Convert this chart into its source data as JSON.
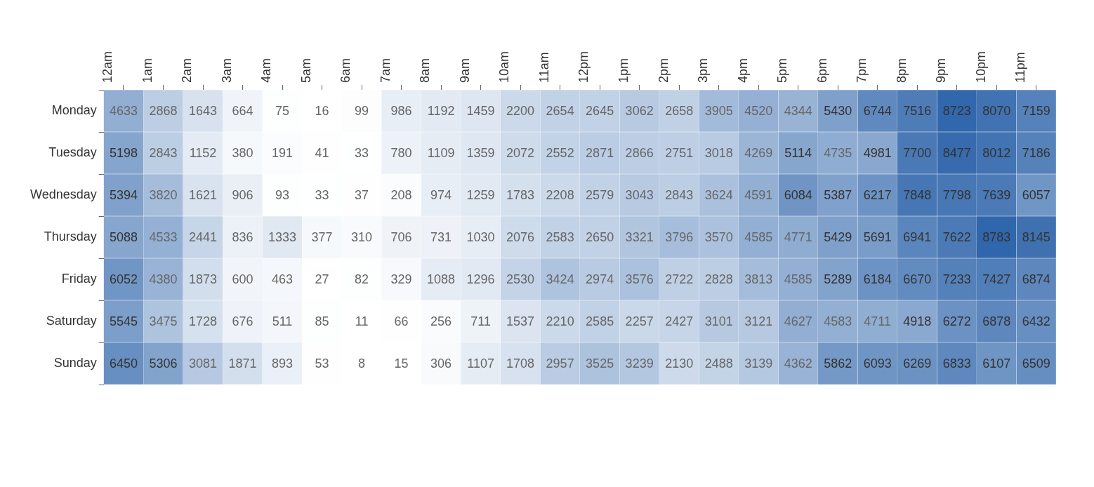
{
  "chart_data": {
    "type": "heatmap",
    "color": "#3066ab",
    "data_labels": true,
    "categories": [
      "12am",
      "1am",
      "2am",
      "3am",
      "4am",
      "5am",
      "6am",
      "7am",
      "8am",
      "9am",
      "10am",
      "11am",
      "12pm",
      "1pm",
      "2pm",
      "3pm",
      "4pm",
      "5pm",
      "6pm",
      "7pm",
      "8pm",
      "9pm",
      "10pm",
      "11pm"
    ],
    "y_categories": [
      "Monday",
      "Tuesday",
      "Wednesday",
      "Thursday",
      "Friday",
      "Saturday",
      "Sunday"
    ],
    "cells": [
      [
        4633,
        2868,
        1643,
        664,
        75,
        16,
        99,
        986,
        1192,
        1459,
        2200,
        2654,
        2645,
        3062,
        2658,
        3905,
        4520,
        4344,
        5430,
        6744,
        7516,
        8723,
        8070,
        7159
      ],
      [
        5198,
        2843,
        1152,
        380,
        191,
        41,
        33,
        780,
        1109,
        1359,
        2072,
        2552,
        2871,
        2866,
        2751,
        3018,
        4269,
        5114,
        4735,
        4981,
        7700,
        8477,
        8012,
        7186
      ],
      [
        5394,
        3820,
        1621,
        906,
        93,
        33,
        37,
        208,
        974,
        1259,
        1783,
        2208,
        2579,
        3043,
        2843,
        3624,
        4591,
        6084,
        5387,
        6217,
        7848,
        7798,
        7639,
        6057
      ],
      [
        5088,
        4533,
        2441,
        836,
        1333,
        377,
        310,
        706,
        731,
        1030,
        2076,
        2583,
        2650,
        3321,
        3796,
        3570,
        4585,
        4771,
        5429,
        5691,
        6941,
        7622,
        8783,
        8145
      ],
      [
        6052,
        4380,
        1873,
        600,
        463,
        27,
        82,
        329,
        1088,
        1296,
        2530,
        3424,
        2974,
        3576,
        2722,
        2828,
        3813,
        4585,
        5289,
        6184,
        6670,
        7233,
        7427,
        6874
      ],
      [
        5545,
        3475,
        1728,
        676,
        511,
        85,
        11,
        66,
        256,
        711,
        1537,
        2210,
        2585,
        2257,
        2427,
        3101,
        3121,
        4627,
        4583,
        4711,
        4918,
        6272,
        6878,
        6432
      ],
      [
        6450,
        5306,
        3081,
        1871,
        893,
        53,
        8,
        15,
        306,
        1107,
        1708,
        2957,
        3525,
        3239,
        2130,
        2488,
        3139,
        4362,
        5862,
        6093,
        6269,
        6833,
        6107,
        6509
      ]
    ]
  }
}
